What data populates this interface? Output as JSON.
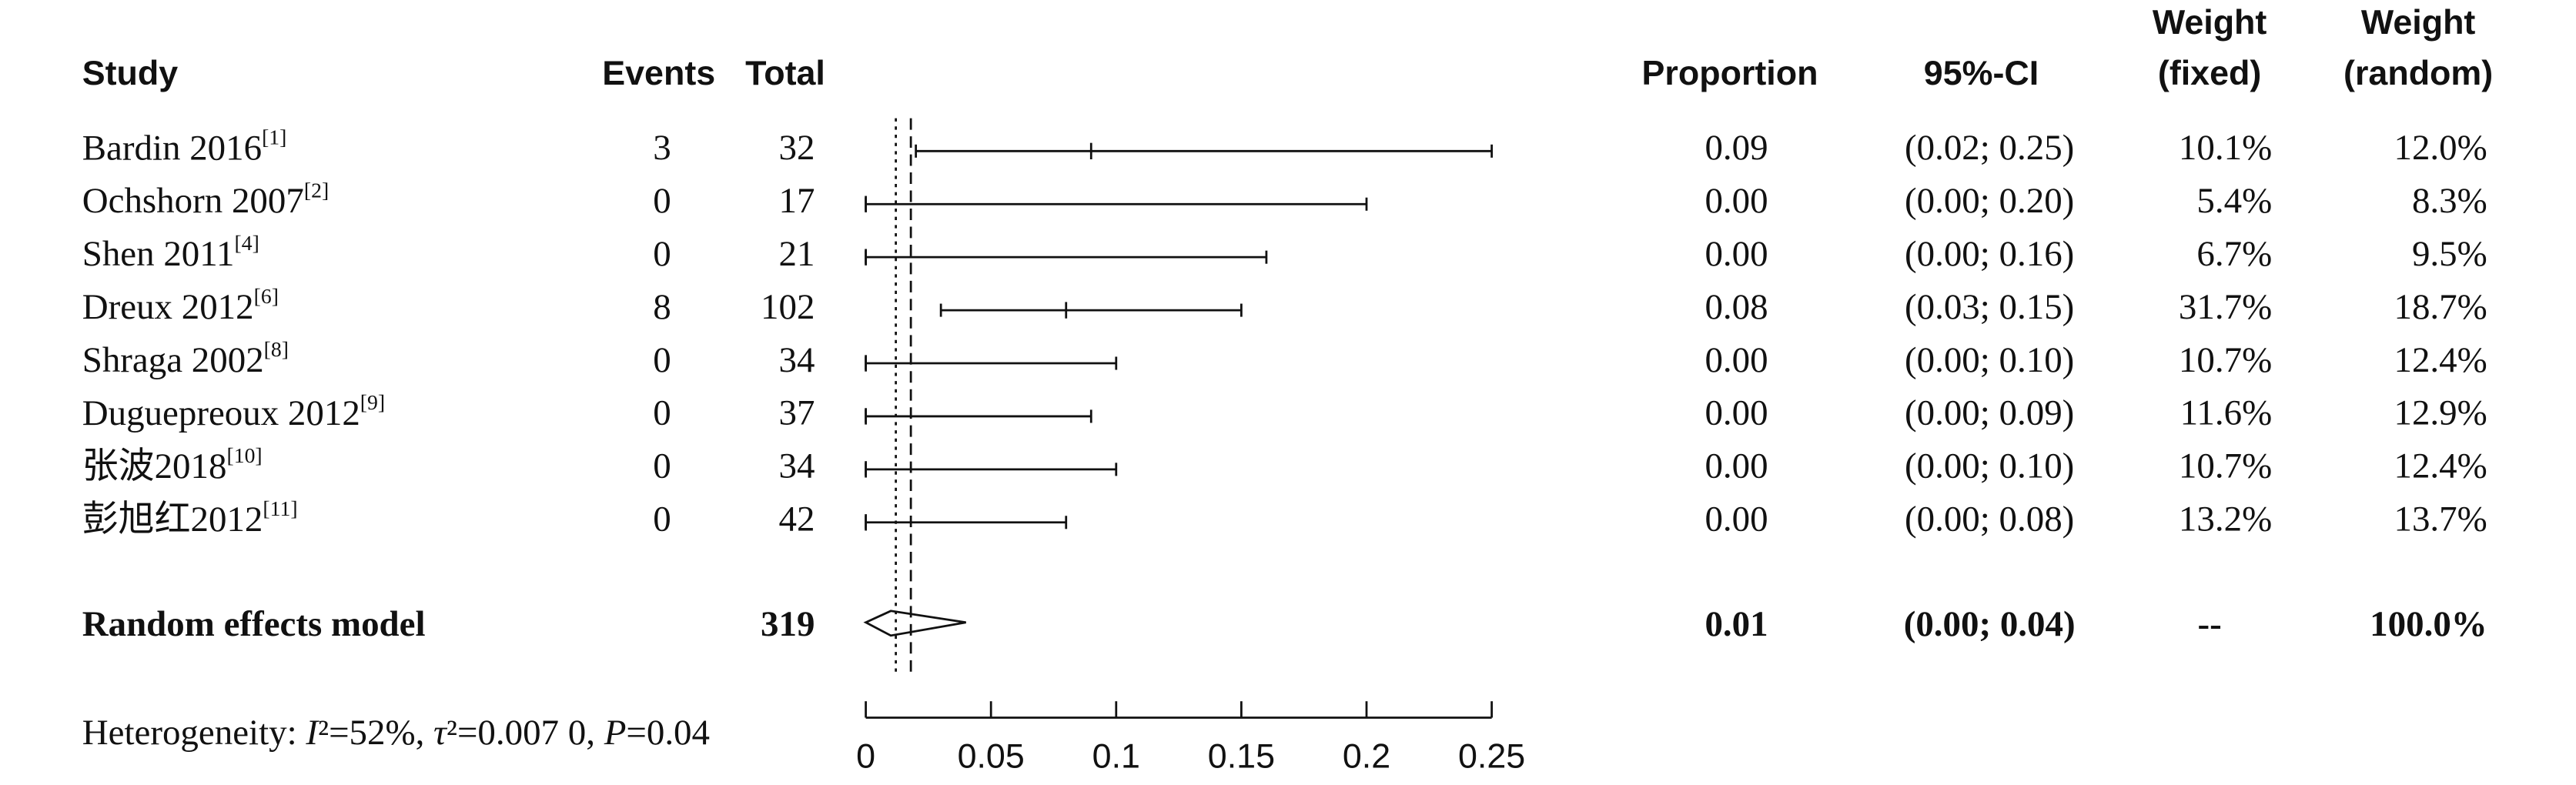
{
  "chart_data": {
    "type": "forest",
    "headers": {
      "study": "Study",
      "events": "Events",
      "total": "Total",
      "proportion": "Proportion",
      "ci": "95%-CI",
      "weight_fixed": [
        "Weight",
        "(fixed)"
      ],
      "weight_random": [
        "Weight",
        "(random)"
      ]
    },
    "studies": [
      {
        "name": "Bardin 2016",
        "ref": "[1]",
        "events": 3,
        "total": 32,
        "proportion": 0.09,
        "ci_lower": 0.02,
        "ci_upper": 0.25,
        "ci_label": "(0.02; 0.25)",
        "weight_fixed": "10.1%",
        "weight_random": "12.0%"
      },
      {
        "name": "Ochshorn 2007",
        "ref": "[2]",
        "events": 0,
        "total": 17,
        "proportion": 0,
        "proportion_label": "0.00",
        "ci_lower": 0,
        "ci_upper": 0.2,
        "ci_label": "(0.00; 0.20)",
        "weight_fixed": "5.4%",
        "weight_random": "8.3%"
      },
      {
        "name": "Shen 2011",
        "ref": "[4]",
        "events": 0,
        "total": 21,
        "proportion": 0,
        "proportion_label": "0.00",
        "ci_lower": 0,
        "ci_upper": 0.16,
        "ci_label": "(0.00; 0.16)",
        "weight_fixed": "6.7%",
        "weight_random": "9.5%"
      },
      {
        "name": "Dreux 2012",
        "ref": "[6]",
        "events": 8,
        "total": 102,
        "proportion": 0.08,
        "ci_lower": 0.03,
        "ci_upper": 0.15,
        "ci_label": "(0.03; 0.15)",
        "weight_fixed": "31.7%",
        "weight_random": "18.7%"
      },
      {
        "name": "Shraga 2002",
        "ref": "[8]",
        "events": 0,
        "total": 34,
        "proportion": 0,
        "proportion_label": "0.00",
        "ci_lower": 0,
        "ci_upper": 0.1,
        "ci_label": "(0.00; 0.10)",
        "weight_fixed": "10.7%",
        "weight_random": "12.4%"
      },
      {
        "name": "Duguepreoux 2012",
        "ref": "[9]",
        "events": 0,
        "total": 37,
        "proportion": 0,
        "proportion_label": "0.00",
        "ci_lower": 0,
        "ci_upper": 0.09,
        "ci_label": "(0.00; 0.09)",
        "weight_fixed": "11.6%",
        "weight_random": "12.9%"
      },
      {
        "name": "张波2018",
        "ref": "[10]",
        "events": 0,
        "total": 34,
        "proportion": 0,
        "proportion_label": "0.00",
        "ci_lower": 0,
        "ci_upper": 0.1,
        "ci_label": "(0.00; 0.10)",
        "weight_fixed": "10.7%",
        "weight_random": "12.4%"
      },
      {
        "name": "彭旭红2012",
        "ref": "[11]",
        "events": 0,
        "total": 42,
        "proportion": 0,
        "proportion_label": "0.00",
        "ci_lower": 0,
        "ci_upper": 0.08,
        "ci_label": "(0.00; 0.08)",
        "weight_fixed": "13.2%",
        "weight_random": "13.7%"
      }
    ],
    "summary": {
      "name": "Random effects model",
      "total": 319,
      "proportion": 0.01,
      "ci_lower": 0,
      "ci_upper": 0.04,
      "ci_label": "(0.00; 0.04)",
      "weight_fixed": "--",
      "weight_random": "100.0%"
    },
    "fixed_effect_line": 0.018,
    "random_effect_line": 0.012,
    "heterogeneity": [
      "Heterogeneity: ",
      "I",
      "²=52%, ",
      "τ",
      "²=0.007 0, ",
      "P",
      "=0.04"
    ],
    "xlim": [
      0,
      0.25
    ],
    "xticks": [
      0,
      0.05,
      0.1,
      0.15,
      0.2,
      0.25
    ]
  }
}
